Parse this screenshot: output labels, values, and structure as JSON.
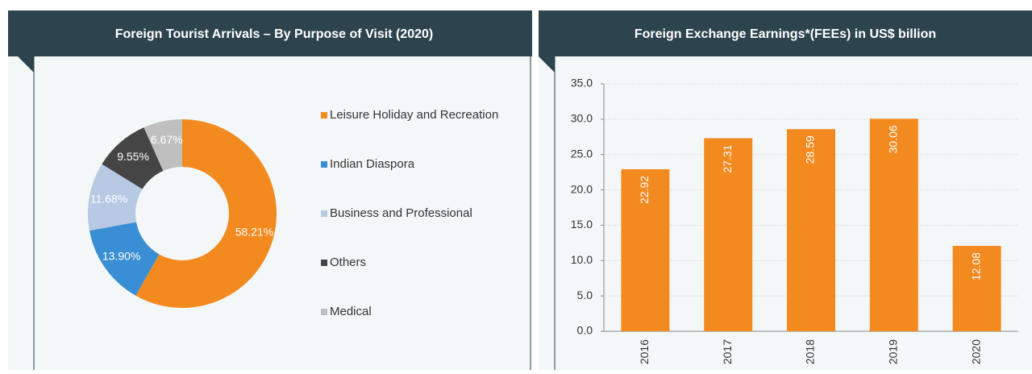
{
  "chart_data": [
    {
      "type": "donut",
      "title": "Foreign Tourist Arrivals – By Purpose of Visit (2020)",
      "categories": [
        "Leisure Holiday and Recreation",
        "Indian Diaspora",
        "Business and Professional",
        "Others",
        "Medical"
      ],
      "values": [
        58.21,
        13.9,
        11.68,
        9.55,
        6.67
      ],
      "value_labels": [
        "58.21%",
        "13.90%",
        "11.68%",
        "9.55%",
        "6.67%"
      ],
      "colors": [
        "#f28a20",
        "#3a8fd4",
        "#b8c9e3",
        "#454545",
        "#bfbfbf"
      ]
    },
    {
      "type": "bar",
      "title": "Foreign Exchange Earnings*(FEEs) in US$ billion",
      "categories": [
        "2016",
        "2017",
        "2018",
        "2019",
        "2020"
      ],
      "values": [
        22.92,
        27.31,
        28.59,
        30.06,
        12.08
      ],
      "color": "#f28a20",
      "ylim": [
        0,
        35
      ],
      "yticks": [
        {
          "value": 0,
          "label": "0.0"
        },
        {
          "value": 5,
          "label": "5.0"
        },
        {
          "value": 10,
          "label": "10.0"
        },
        {
          "value": 15,
          "label": "15.0"
        },
        {
          "value": 20,
          "label": "20.0"
        },
        {
          "value": 25,
          "label": "25.0"
        },
        {
          "value": 30,
          "label": "30.0"
        },
        {
          "value": 35,
          "label": "35.0"
        }
      ],
      "grid": true
    }
  ]
}
